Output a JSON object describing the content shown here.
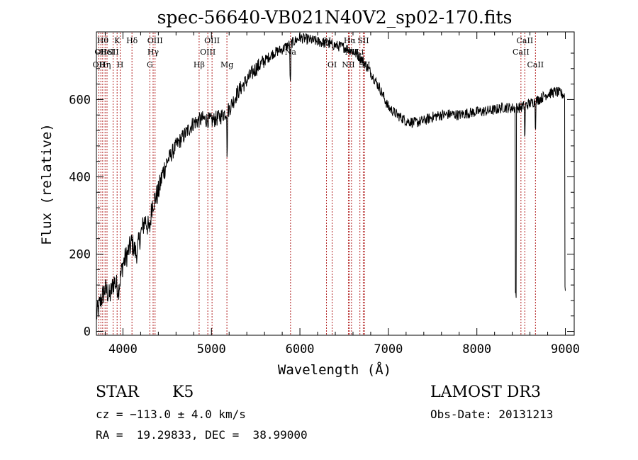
{
  "chart_data": {
    "type": "line",
    "title": "spec-56640-VB021N40V2_sp02-170.fits",
    "xlabel": "Wavelength (Å)",
    "ylabel": "Flux (relative)",
    "xlim": [
      3700,
      9100
    ],
    "ylim": [
      -10,
      775
    ],
    "xticks": [
      4000,
      5000,
      6000,
      7000,
      8000,
      9000
    ],
    "xtick_labels": [
      "4000",
      "5000",
      "6000",
      "7000",
      "8000",
      "9000"
    ],
    "yticks": [
      0,
      200,
      400,
      600
    ],
    "ytick_labels": [
      "0",
      "200",
      "400",
      "600"
    ],
    "series": [
      {
        "name": "spectrum",
        "color": "#000000",
        "anchors": [
          [
            3700,
            40
          ],
          [
            3750,
            80
          ],
          [
            3800,
            110
          ],
          [
            3850,
            90
          ],
          [
            3900,
            130
          ],
          [
            3950,
            110
          ],
          [
            4000,
            175
          ],
          [
            4050,
            200
          ],
          [
            4100,
            230
          ],
          [
            4150,
            200
          ],
          [
            4200,
            250
          ],
          [
            4250,
            290
          ],
          [
            4300,
            260
          ],
          [
            4330,
            330
          ],
          [
            4400,
            360
          ],
          [
            4450,
            410
          ],
          [
            4500,
            440
          ],
          [
            4600,
            480
          ],
          [
            4700,
            510
          ],
          [
            4800,
            540
          ],
          [
            4900,
            550
          ],
          [
            5000,
            545
          ],
          [
            5100,
            555
          ],
          [
            5200,
            575
          ],
          [
            5300,
            620
          ],
          [
            5400,
            650
          ],
          [
            5500,
            680
          ],
          [
            5600,
            700
          ],
          [
            5700,
            720
          ],
          [
            5800,
            730
          ],
          [
            5900,
            745
          ],
          [
            6000,
            760
          ],
          [
            6100,
            755
          ],
          [
            6200,
            750
          ],
          [
            6300,
            745
          ],
          [
            6400,
            740
          ],
          [
            6500,
            735
          ],
          [
            6600,
            725
          ],
          [
            6700,
            705
          ],
          [
            6800,
            670
          ],
          [
            6900,
            630
          ],
          [
            7000,
            580
          ],
          [
            7100,
            560
          ],
          [
            7200,
            545
          ],
          [
            7300,
            540
          ],
          [
            7400,
            545
          ],
          [
            7500,
            555
          ],
          [
            7600,
            560
          ],
          [
            7700,
            562
          ],
          [
            7800,
            560
          ],
          [
            7900,
            565
          ],
          [
            8000,
            568
          ],
          [
            8100,
            570
          ],
          [
            8200,
            573
          ],
          [
            8300,
            580
          ],
          [
            8400,
            578
          ],
          [
            8500,
            580
          ],
          [
            8600,
            590
          ],
          [
            8700,
            600
          ],
          [
            8800,
            615
          ],
          [
            8900,
            620
          ],
          [
            9000,
            610
          ]
        ],
        "noise_amplitude": 14,
        "absorption_dips": [
          {
            "wavelength": 5178,
            "depth": 110
          },
          {
            "wavelength": 5892,
            "depth": 90
          },
          {
            "wavelength": 8440,
            "depth": 480
          },
          {
            "wavelength": 8542,
            "depth": 80
          },
          {
            "wavelength": 8662,
            "depth": 60
          },
          {
            "wavelength": 9000,
            "depth": 500
          }
        ]
      }
    ],
    "spectral_lines": [
      {
        "wavelength": 3727,
        "label": "OII",
        "row": 2
      },
      {
        "wavelength": 3750,
        "label": "OII",
        "row": 1
      },
      {
        "wavelength": 3771,
        "label": "Hθ",
        "row": 0
      },
      {
        "wavelength": 3798,
        "label": "Hη",
        "row": 2
      },
      {
        "wavelength": 3820,
        "label": "HeI",
        "row": 1
      },
      {
        "wavelength": 3889,
        "label": "SII",
        "row": 1
      },
      {
        "wavelength": 3934,
        "label": "K",
        "row": 0
      },
      {
        "wavelength": 3969,
        "label": "H",
        "row": 2
      },
      {
        "wavelength": 4102,
        "label": "Hδ",
        "row": 0
      },
      {
        "wavelength": 4304,
        "label": "G",
        "row": 2
      },
      {
        "wavelength": 4341,
        "label": "Hγ",
        "row": 1
      },
      {
        "wavelength": 4363,
        "label": "OIII",
        "row": 0
      },
      {
        "wavelength": 4861,
        "label": "Hβ",
        "row": 2
      },
      {
        "wavelength": 4959,
        "label": "OIII",
        "row": 1
      },
      {
        "wavelength": 5007,
        "label": "OIII",
        "row": 0
      },
      {
        "wavelength": 5175,
        "label": "Mg",
        "row": 2
      },
      {
        "wavelength": 5894,
        "label": "Na",
        "row": 1
      },
      {
        "wavelength": 6300,
        "label": "OI",
        "row": 0
      },
      {
        "wavelength": 6364,
        "label": "OI",
        "row": 2
      },
      {
        "wavelength": 6548,
        "label": "NII",
        "row": 2
      },
      {
        "wavelength": 6563,
        "label": "Hα",
        "row": 0
      },
      {
        "wavelength": 6583,
        "label": "NII",
        "row": 1
      },
      {
        "wavelength": 6678,
        "label": "Li",
        "row": 1
      },
      {
        "wavelength": 6716,
        "label": "SII",
        "row": 0
      },
      {
        "wavelength": 6731,
        "label": "SII",
        "row": 2
      },
      {
        "wavelength": 8498,
        "label": "CaII",
        "row": 1
      },
      {
        "wavelength": 8542,
        "label": "CaII",
        "row": 0
      },
      {
        "wavelength": 8662,
        "label": "CaII",
        "row": 2
      }
    ]
  },
  "info": {
    "object_class": "STAR",
    "subclass": "K5",
    "survey": "LAMOST DR3",
    "redshift": "cz = −113.0 ± 4.0 km/s",
    "obs_date": "Obs-Date: 20131213",
    "coordinates": "RA =  19.29833, DEC =  38.99000"
  },
  "colors": {
    "line_marker": "#b22222",
    "spectrum": "#000000"
  }
}
